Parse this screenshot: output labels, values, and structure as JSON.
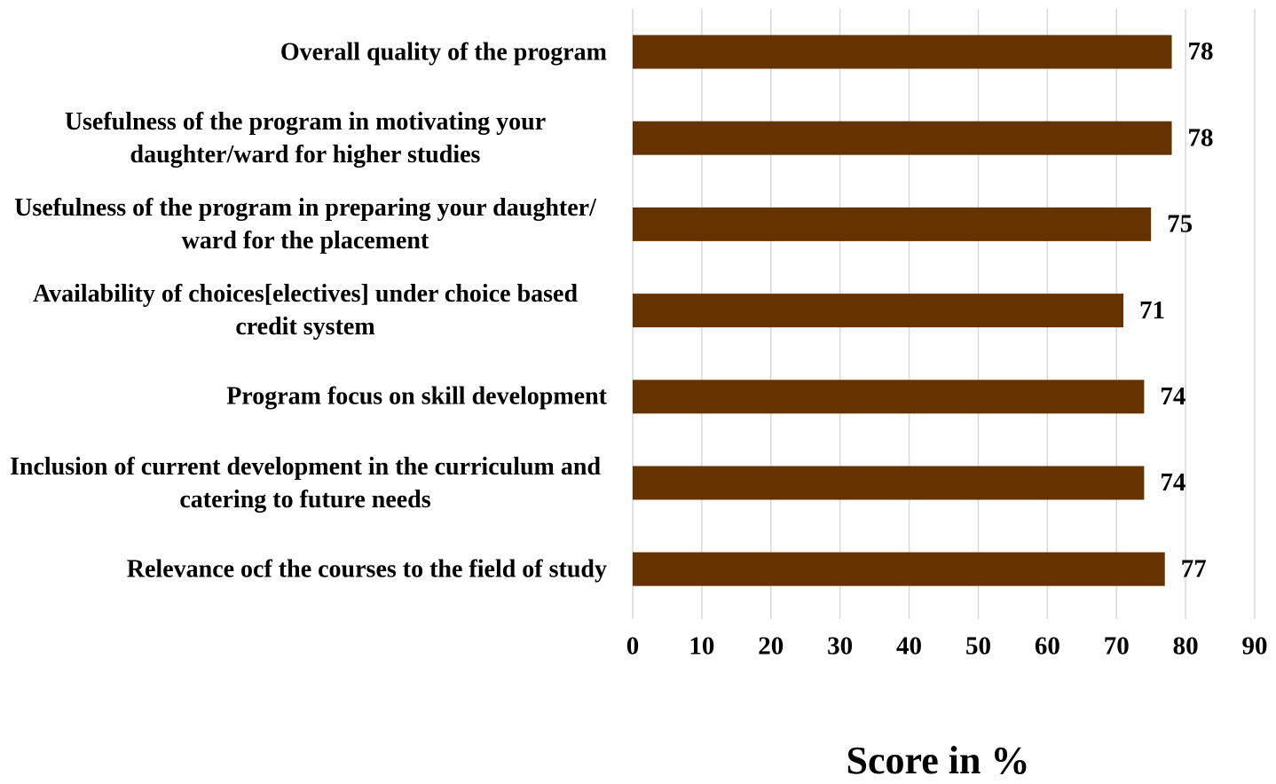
{
  "chart_data": {
    "type": "bar",
    "orientation": "horizontal",
    "categories": [
      "Overall quality of the program",
      "Usefulness of the program in motivating your daughter/ward for higher studies",
      "Usefulness of the program in preparing your daughter/ ward for the placement",
      "Availability of choices[electives] under choice based credit system",
      "Program focus on skill development",
      "Inclusion of current development in the curriculum and catering to future needs",
      "Relevance ocf the courses to the field of study"
    ],
    "values": [
      78,
      78,
      75,
      71,
      74,
      74,
      77
    ],
    "color": "#663300",
    "x_label": "Score in %",
    "xlim": [
      0,
      90
    ],
    "xticks": [
      0,
      10,
      20,
      30,
      40,
      50,
      60,
      70,
      80,
      90
    ],
    "grid": true
  }
}
